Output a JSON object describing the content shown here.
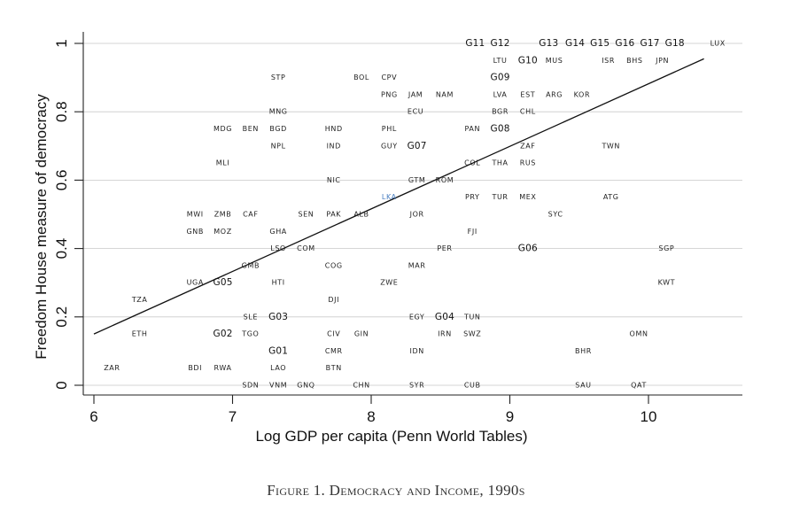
{
  "caption": "Figure 1. Democracy and Income, 1990s",
  "chart_data": {
    "type": "scatter",
    "title": "",
    "xlabel": "Log GDP per capita (Penn World Tables)",
    "ylabel": "Freedom House measure of democracy",
    "xlim": [
      5.95,
      10.7
    ],
    "ylim": [
      -0.03,
      1.04
    ],
    "xticks": [
      6,
      7,
      8,
      9,
      10
    ],
    "yticks": [
      0,
      0.2,
      0.4,
      0.6,
      0.8,
      1
    ],
    "ytick_labels": [
      "0",
      "0.2",
      "0.4",
      "0.6",
      "0.8",
      "1"
    ],
    "grid": "horizontal",
    "fit_line": {
      "x": [
        6.0,
        10.4
      ],
      "y": [
        0.15,
        0.955
      ]
    },
    "points": [
      {
        "label": "LUX",
        "x": 10.5,
        "y": 1.0
      },
      {
        "label": "G11",
        "x": 8.75,
        "y": 1.0
      },
      {
        "label": "G12",
        "x": 8.93,
        "y": 1.0
      },
      {
        "label": "G13",
        "x": 9.28,
        "y": 1.0
      },
      {
        "label": "G14",
        "x": 9.47,
        "y": 1.0
      },
      {
        "label": "G15",
        "x": 9.65,
        "y": 1.0
      },
      {
        "label": "G16",
        "x": 9.83,
        "y": 1.0
      },
      {
        "label": "G17",
        "x": 10.01,
        "y": 1.0
      },
      {
        "label": "G18",
        "x": 10.19,
        "y": 1.0
      },
      {
        "label": "LTU",
        "x": 8.93,
        "y": 0.95
      },
      {
        "label": "G10",
        "x": 9.13,
        "y": 0.95
      },
      {
        "label": "MUS",
        "x": 9.32,
        "y": 0.95
      },
      {
        "label": "ISR",
        "x": 9.71,
        "y": 0.95
      },
      {
        "label": "BHS",
        "x": 9.9,
        "y": 0.95
      },
      {
        "label": "JPN",
        "x": 10.1,
        "y": 0.95
      },
      {
        "label": "STP",
        "x": 7.33,
        "y": 0.9
      },
      {
        "label": "BOL",
        "x": 7.93,
        "y": 0.9
      },
      {
        "label": "CPV",
        "x": 8.13,
        "y": 0.9
      },
      {
        "label": "G09",
        "x": 8.93,
        "y": 0.9
      },
      {
        "label": "PNG",
        "x": 8.13,
        "y": 0.85
      },
      {
        "label": "JAM",
        "x": 8.32,
        "y": 0.85
      },
      {
        "label": "NAM",
        "x": 8.53,
        "y": 0.85
      },
      {
        "label": "LVA",
        "x": 8.93,
        "y": 0.85
      },
      {
        "label": "EST",
        "x": 9.13,
        "y": 0.85
      },
      {
        "label": "ARG",
        "x": 9.32,
        "y": 0.85
      },
      {
        "label": "KOR",
        "x": 9.52,
        "y": 0.85
      },
      {
        "label": "MNG",
        "x": 7.33,
        "y": 0.8
      },
      {
        "label": "ECU",
        "x": 8.32,
        "y": 0.8
      },
      {
        "label": "BGR",
        "x": 8.93,
        "y": 0.8
      },
      {
        "label": "CHL",
        "x": 9.13,
        "y": 0.8
      },
      {
        "label": "MDG",
        "x": 6.93,
        "y": 0.75
      },
      {
        "label": "BEN",
        "x": 7.13,
        "y": 0.75
      },
      {
        "label": "BGD",
        "x": 7.33,
        "y": 0.75
      },
      {
        "label": "HND",
        "x": 7.73,
        "y": 0.75
      },
      {
        "label": "PHL",
        "x": 8.13,
        "y": 0.75
      },
      {
        "label": "PAN",
        "x": 8.73,
        "y": 0.75
      },
      {
        "label": "G08",
        "x": 8.93,
        "y": 0.75
      },
      {
        "label": "NPL",
        "x": 7.33,
        "y": 0.7
      },
      {
        "label": "IND",
        "x": 7.73,
        "y": 0.7
      },
      {
        "label": "GUY",
        "x": 8.13,
        "y": 0.7
      },
      {
        "label": "G07",
        "x": 8.33,
        "y": 0.7
      },
      {
        "label": "ZAF",
        "x": 9.13,
        "y": 0.7
      },
      {
        "label": "TWN",
        "x": 9.73,
        "y": 0.7
      },
      {
        "label": "MLI",
        "x": 6.93,
        "y": 0.65
      },
      {
        "label": "COL",
        "x": 8.73,
        "y": 0.65
      },
      {
        "label": "THA",
        "x": 8.93,
        "y": 0.65
      },
      {
        "label": "RUS",
        "x": 9.13,
        "y": 0.65
      },
      {
        "label": "NIC",
        "x": 7.73,
        "y": 0.6
      },
      {
        "label": "GTM",
        "x": 8.33,
        "y": 0.6
      },
      {
        "label": "ROM",
        "x": 8.53,
        "y": 0.6
      },
      {
        "label": "LKA",
        "x": 8.13,
        "y": 0.55
      },
      {
        "label": "PRY",
        "x": 8.73,
        "y": 0.55
      },
      {
        "label": "TUR",
        "x": 8.93,
        "y": 0.55
      },
      {
        "label": "MEX",
        "x": 9.13,
        "y": 0.55
      },
      {
        "label": "ATG",
        "x": 9.73,
        "y": 0.55
      },
      {
        "label": "MWI",
        "x": 6.73,
        "y": 0.5
      },
      {
        "label": "ZMB",
        "x": 6.93,
        "y": 0.5
      },
      {
        "label": "CAF",
        "x": 7.13,
        "y": 0.5
      },
      {
        "label": "SEN",
        "x": 7.53,
        "y": 0.5
      },
      {
        "label": "PAK",
        "x": 7.73,
        "y": 0.5
      },
      {
        "label": "ALB",
        "x": 7.93,
        "y": 0.5
      },
      {
        "label": "JOR",
        "x": 8.33,
        "y": 0.5
      },
      {
        "label": "SYC",
        "x": 9.33,
        "y": 0.5
      },
      {
        "label": "GNB",
        "x": 6.73,
        "y": 0.45
      },
      {
        "label": "MOZ",
        "x": 6.93,
        "y": 0.45
      },
      {
        "label": "GHA",
        "x": 7.33,
        "y": 0.45
      },
      {
        "label": "FJI",
        "x": 8.73,
        "y": 0.45
      },
      {
        "label": "LSO",
        "x": 7.33,
        "y": 0.4
      },
      {
        "label": "COM",
        "x": 7.53,
        "y": 0.4
      },
      {
        "label": "PER",
        "x": 8.53,
        "y": 0.4
      },
      {
        "label": "G06",
        "x": 9.13,
        "y": 0.4
      },
      {
        "label": "SGP",
        "x": 10.13,
        "y": 0.4
      },
      {
        "label": "GMB",
        "x": 7.13,
        "y": 0.35
      },
      {
        "label": "COG",
        "x": 7.73,
        "y": 0.35
      },
      {
        "label": "MAR",
        "x": 8.33,
        "y": 0.35
      },
      {
        "label": "UGA",
        "x": 6.73,
        "y": 0.3
      },
      {
        "label": "G05",
        "x": 6.93,
        "y": 0.3
      },
      {
        "label": "HTI",
        "x": 7.33,
        "y": 0.3
      },
      {
        "label": "ZWE",
        "x": 8.13,
        "y": 0.3
      },
      {
        "label": "KWT",
        "x": 10.13,
        "y": 0.3
      },
      {
        "label": "TZA",
        "x": 6.33,
        "y": 0.25
      },
      {
        "label": "DJI",
        "x": 7.73,
        "y": 0.25
      },
      {
        "label": "SLE",
        "x": 7.13,
        "y": 0.2
      },
      {
        "label": "G03",
        "x": 7.33,
        "y": 0.2
      },
      {
        "label": "EGY",
        "x": 8.33,
        "y": 0.2
      },
      {
        "label": "G04",
        "x": 8.53,
        "y": 0.2
      },
      {
        "label": "TUN",
        "x": 8.73,
        "y": 0.2
      },
      {
        "label": "ETH",
        "x": 6.33,
        "y": 0.15
      },
      {
        "label": "G02",
        "x": 6.93,
        "y": 0.15
      },
      {
        "label": "TGO",
        "x": 7.13,
        "y": 0.15
      },
      {
        "label": "CIV",
        "x": 7.73,
        "y": 0.15
      },
      {
        "label": "GIN",
        "x": 7.93,
        "y": 0.15
      },
      {
        "label": "IRN",
        "x": 8.53,
        "y": 0.15
      },
      {
        "label": "SWZ",
        "x": 8.73,
        "y": 0.15
      },
      {
        "label": "OMN",
        "x": 9.93,
        "y": 0.15
      },
      {
        "label": "G01",
        "x": 7.33,
        "y": 0.1
      },
      {
        "label": "CMR",
        "x": 7.73,
        "y": 0.1
      },
      {
        "label": "IDN",
        "x": 8.33,
        "y": 0.1
      },
      {
        "label": "BHR",
        "x": 9.53,
        "y": 0.1
      },
      {
        "label": "ZAR",
        "x": 6.13,
        "y": 0.05
      },
      {
        "label": "BDI",
        "x": 6.73,
        "y": 0.05
      },
      {
        "label": "RWA",
        "x": 6.93,
        "y": 0.05
      },
      {
        "label": "LAO",
        "x": 7.33,
        "y": 0.05
      },
      {
        "label": "BTN",
        "x": 7.73,
        "y": 0.05
      },
      {
        "label": "SDN",
        "x": 7.13,
        "y": 0.0
      },
      {
        "label": "VNM",
        "x": 7.33,
        "y": 0.0
      },
      {
        "label": "GNQ",
        "x": 7.53,
        "y": 0.0
      },
      {
        "label": "CHN",
        "x": 7.93,
        "y": 0.0
      },
      {
        "label": "SYR",
        "x": 8.33,
        "y": 0.0
      },
      {
        "label": "CUB",
        "x": 8.73,
        "y": 0.0
      },
      {
        "label": "SAU",
        "x": 9.53,
        "y": 0.0
      },
      {
        "label": "QAT",
        "x": 9.93,
        "y": 0.0
      }
    ]
  }
}
